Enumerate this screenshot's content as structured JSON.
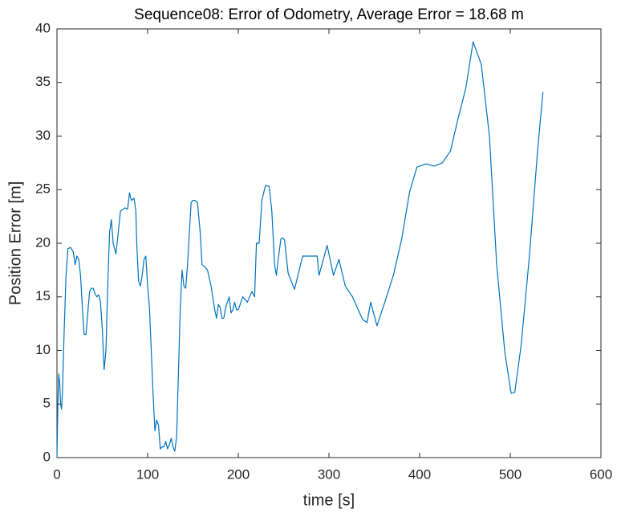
{
  "chart_data": {
    "type": "line",
    "title": "Sequence08: Error of Odometry, Average Error = 18.68 m",
    "xlabel": "time [s]",
    "ylabel": "Position Error [m]",
    "xlim": [
      0,
      600
    ],
    "xticks": [
      0,
      100,
      200,
      300,
      400,
      500,
      600
    ],
    "ylim": [
      0,
      40
    ],
    "yticks": [
      0,
      5,
      10,
      15,
      20,
      25,
      30,
      35,
      40
    ],
    "series": [
      {
        "color": "#0072bd",
        "x": [
          0,
          1,
          2,
          3,
          4,
          5,
          6,
          8,
          10,
          12,
          15,
          18,
          20,
          22,
          24,
          26,
          28,
          30,
          32,
          34,
          36,
          38,
          40,
          42,
          44,
          46,
          48,
          50,
          52,
          54,
          56,
          58,
          60,
          62,
          65,
          67,
          70,
          75,
          78,
          80,
          82,
          85,
          87,
          88,
          90,
          92,
          94,
          96,
          98,
          100,
          102,
          104,
          106,
          108,
          110,
          112,
          114,
          116,
          118,
          120,
          122,
          124,
          126,
          128,
          130,
          132,
          134,
          136,
          138,
          140,
          142,
          144,
          146,
          148,
          150,
          152,
          155,
          158,
          160,
          163,
          166,
          170,
          174,
          176,
          178,
          180,
          182,
          184,
          186,
          188,
          190,
          192,
          194,
          196,
          198,
          200,
          205,
          210,
          215,
          218,
          220,
          223,
          226,
          230,
          234,
          237,
          240,
          242,
          244,
          247,
          249,
          251,
          255,
          262,
          271,
          287,
          289,
          298,
          305,
          311,
          318,
          326,
          337,
          342,
          346,
          353,
          362,
          371,
          380,
          389,
          397,
          407,
          416,
          425,
          434,
          442,
          451,
          459,
          468,
          477,
          485,
          494,
          501,
          505,
          512,
          521,
          530,
          536
        ],
        "values": [
          0,
          5,
          7.8,
          7,
          5,
          4.5,
          6,
          12,
          17,
          19.5,
          19.6,
          19.2,
          18,
          18.8,
          18.5,
          17,
          14,
          11.5,
          11.5,
          13.5,
          15.5,
          15.8,
          15.8,
          15.3,
          15,
          15.2,
          14.5,
          12,
          8.2,
          10,
          16,
          21,
          22.2,
          20,
          19,
          20.5,
          23,
          23.3,
          23.2,
          24.7,
          24,
          24.2,
          23,
          20,
          16.5,
          16,
          17,
          18.5,
          18.8,
          16,
          14,
          10,
          6,
          2.5,
          3.5,
          3,
          0.8,
          1,
          1,
          1.5,
          0.8,
          1.2,
          1.8,
          1,
          0.6,
          2,
          8,
          14,
          17.5,
          16,
          15.8,
          18,
          21,
          23.8,
          24,
          24,
          23.8,
          21,
          18,
          17.8,
          17.5,
          16,
          13.8,
          13,
          14.3,
          14,
          13,
          13,
          14,
          14.5,
          15,
          13.5,
          13.8,
          14.5,
          13.8,
          13.8,
          15,
          14.5,
          15.5,
          15,
          20,
          20,
          24,
          25.4,
          25.3,
          23,
          18,
          17,
          18.5,
          20.4,
          20.5,
          20.3,
          17.2,
          15.7,
          18.8,
          18.8,
          17,
          19.8,
          17,
          18.5,
          16,
          15,
          12.9,
          12.6,
          14.5,
          12.3,
          14.6,
          17,
          20.3,
          24.8,
          27.1,
          27.4,
          27.2,
          27.5,
          28.6,
          31.5,
          34.5,
          38.8,
          36.7,
          30,
          18,
          9.8,
          6,
          6.1,
          10.5,
          18.7,
          28.5,
          34.1
        ]
      }
    ]
  }
}
